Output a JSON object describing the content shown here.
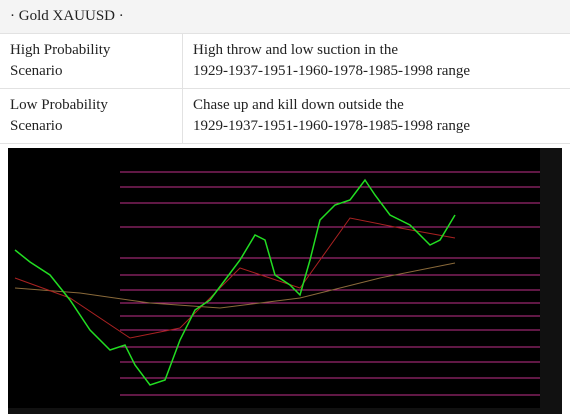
{
  "header": {
    "title": "· Gold XAUUSD ·"
  },
  "table": {
    "rows": [
      [
        [
          "High Probability",
          "Scenario"
        ],
        [
          "High throw and low suction in the",
          "1929-1937-1951-1960-1978-1985-1998 range"
        ]
      ],
      [
        [
          "Low Probability",
          "Scenario"
        ],
        [
          "Chase up and kill down outside the",
          "1929-1937-1951-1960-1978-1985-1998 range"
        ]
      ]
    ]
  }
}
